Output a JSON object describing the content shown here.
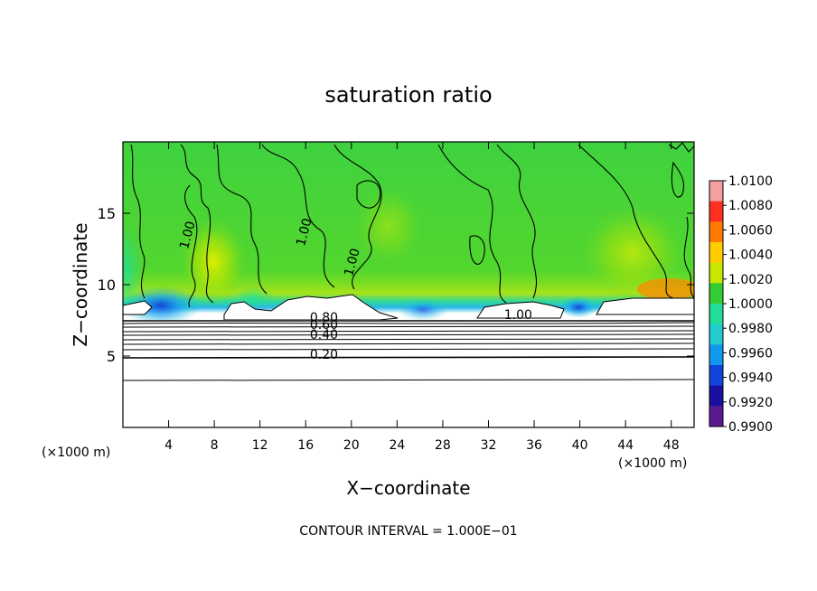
{
  "chart_data": {
    "type": "contour",
    "title": "saturation ratio",
    "xlabel": "X−coordinate",
    "ylabel": "Z−coordinate",
    "x_unit_left": "(×1000 m)",
    "x_unit_right": "(×1000 m)",
    "xlim": [
      0,
      50
    ],
    "ylim": [
      0,
      20
    ],
    "x_ticks": [
      4,
      8,
      12,
      16,
      20,
      24,
      28,
      32,
      36,
      40,
      44,
      48
    ],
    "y_ticks": [
      5,
      10,
      15
    ],
    "colorbar": {
      "levels": [
        1.01,
        1.008,
        1.006,
        1.004,
        1.002,
        1.0,
        0.998,
        0.996,
        0.994,
        0.992,
        0.99
      ],
      "labels": [
        "1.0100",
        "1.0080",
        "1.0060",
        "1.0040",
        "1.0020",
        "1.0000",
        "0.9980",
        "0.9960",
        "0.9940",
        "0.9920",
        "0.9900"
      ],
      "colors": [
        "#f4a0a0",
        "#ff3020",
        "#ff7a00",
        "#ffcc00",
        "#c8e600",
        "#33cc33",
        "#22dd99",
        "#22cccc",
        "#1199ee",
        "#1144dd",
        "#1a10a0",
        "#5a1a90"
      ]
    },
    "contour_labels": [
      {
        "text": "1.00",
        "x": 6.0,
        "z": 13.4
      },
      {
        "text": "1.00",
        "x": 16.2,
        "z": 13.6
      },
      {
        "text": "1.00",
        "x": 20.4,
        "z": 11.5
      },
      {
        "text": "1.00",
        "x": 34.6,
        "z": 7.6
      },
      {
        "text": "0.80",
        "x": 17.6,
        "z": 7.4
      },
      {
        "text": "0.60",
        "x": 17.6,
        "z": 6.9
      },
      {
        "text": "0.40",
        "x": 17.6,
        "z": 6.2
      },
      {
        "text": "0.20",
        "x": 17.6,
        "z": 4.8
      }
    ],
    "contour_interval_text": "CONTOUR INTERVAL = 1.000E−01"
  }
}
